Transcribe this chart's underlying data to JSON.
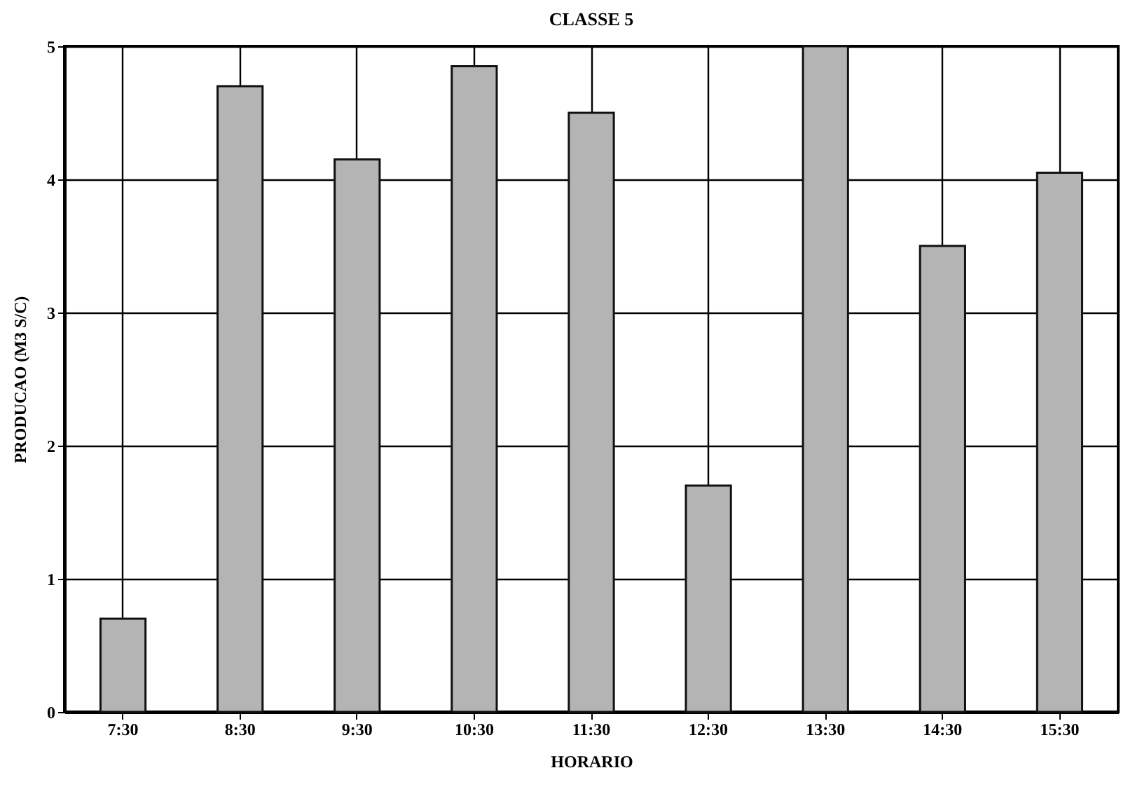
{
  "chart_data": {
    "type": "bar",
    "title": "CLASSE 5",
    "xlabel": "HORARIO",
    "ylabel": "PRODUCAO (M3 S/C)",
    "categories": [
      "7:30",
      "8:30",
      "9:30",
      "10:30",
      "11:30",
      "12:30",
      "13:30",
      "14:30",
      "15:30"
    ],
    "values": [
      0.7,
      4.7,
      4.15,
      4.85,
      4.5,
      1.7,
      5.0,
      3.5,
      4.05
    ],
    "color": "#b4b4b4",
    "ylim": [
      0,
      5
    ],
    "yticks": [
      0,
      1,
      2,
      3,
      4,
      5
    ],
    "grid": true
  }
}
